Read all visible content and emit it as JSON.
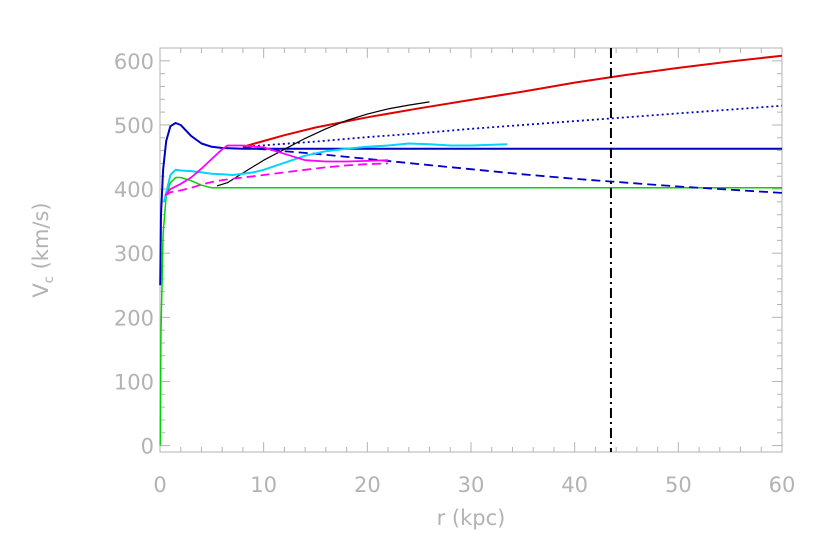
{
  "chart_data": {
    "type": "line",
    "title": "",
    "xlabel": "r (kpc)",
    "ylabel_main": "V",
    "ylabel_sub": "c",
    "ylabel_unit": " (km/s)",
    "xlim": [
      0,
      60
    ],
    "ylim": [
      -10,
      620
    ],
    "x_ticks": [
      0,
      10,
      20,
      30,
      40,
      50,
      60
    ],
    "x_tick_labels": [
      "0",
      "10",
      "20",
      "30",
      "40",
      "50",
      "60"
    ],
    "y_ticks": [
      0,
      100,
      200,
      300,
      400,
      500,
      600
    ],
    "y_tick_labels": [
      "0",
      "100",
      "200",
      "300",
      "400",
      "500",
      "600"
    ],
    "grid": false,
    "legend": "none",
    "vertical_lines": [
      {
        "x": 43.5,
        "color": "#000000",
        "dash": "dash-dot"
      }
    ],
    "series": [
      {
        "color": "#00d400",
        "dash": "solid",
        "width": 1.5,
        "x": [
          0.02,
          0.1,
          0.3,
          0.6,
          1.0,
          1.5,
          2.0,
          3.0,
          4.0,
          5.0,
          6.0,
          10,
          20,
          30,
          40,
          50,
          60
        ],
        "y": [
          0,
          180,
          330,
          390,
          410,
          418,
          418,
          413,
          406,
          402,
          402,
          402,
          402,
          402,
          402,
          402,
          402
        ]
      },
      {
        "color": "#0000c8",
        "dash": "solid",
        "width": 2,
        "x": [
          0.02,
          0.1,
          0.3,
          0.6,
          1.0,
          1.5,
          2.0,
          3.0,
          4.0,
          5.0,
          6.0,
          8.0,
          10,
          20,
          30,
          40,
          50,
          60
        ],
        "y": [
          250,
          360,
          430,
          475,
          498,
          503,
          500,
          483,
          471,
          466,
          464,
          463,
          463,
          463,
          463,
          463,
          463,
          463
        ]
      },
      {
        "color": "#0000c8",
        "dash": "dashed",
        "width": 1.8,
        "x": [
          8,
          12,
          15,
          20,
          25,
          30,
          35,
          40,
          45,
          50,
          55,
          60
        ],
        "y": [
          465,
          459,
          455,
          447,
          439,
          431,
          423,
          416,
          410,
          404,
          399,
          394
        ]
      },
      {
        "color": "#0000c8",
        "dash": "dotted",
        "width": 1.8,
        "x": [
          8,
          15,
          20,
          25,
          30,
          35,
          40,
          45,
          50,
          55,
          60
        ],
        "y": [
          466,
          474,
          481,
          487,
          494,
          500,
          506,
          512,
          518,
          524,
          530
        ]
      },
      {
        "color": "#e00000",
        "dash": "solid",
        "width": 2,
        "x": [
          8,
          10,
          12,
          15,
          20,
          25,
          30,
          35,
          40,
          45,
          50,
          55,
          60
        ],
        "y": [
          466,
          475,
          484,
          496,
          512,
          526,
          539,
          552,
          566,
          578,
          589,
          599,
          608
        ]
      },
      {
        "color": "#000000",
        "dash": "solid",
        "width": 1.2,
        "x": [
          5.5,
          6.5,
          7.5,
          8.5,
          10,
          12,
          14,
          16,
          18,
          20,
          22,
          24,
          26
        ],
        "y": [
          405,
          410,
          420,
          430,
          445,
          462,
          479,
          494,
          507,
          517,
          525,
          531,
          536
        ]
      },
      {
        "color": "#00d4ff",
        "dash": "solid",
        "width": 2,
        "x": [
          0.4,
          1.0,
          1.5,
          2.0,
          3.0,
          4.0,
          5.0,
          6.0,
          7.0,
          8.0,
          9.0,
          10,
          12,
          14,
          16,
          18,
          20,
          22,
          24,
          26,
          28,
          30,
          33.5
        ],
        "y": [
          380,
          422,
          430,
          429,
          428,
          426,
          424,
          423,
          422,
          424,
          426,
          430,
          441,
          452,
          459,
          463,
          466,
          468,
          471,
          470,
          468,
          468,
          470
        ]
      },
      {
        "color": "#ff00ff",
        "dash": "solid",
        "width": 1.8,
        "x": [
          0.5,
          1.0,
          2.0,
          3.0,
          4.0,
          5.0,
          6.0,
          6.5,
          8,
          10,
          12,
          14,
          16,
          18,
          20,
          22
        ],
        "y": [
          390,
          400,
          408,
          418,
          432,
          447,
          462,
          468,
          468,
          465,
          455,
          445,
          443,
          443,
          444,
          445
        ]
      },
      {
        "color": "#ff00ff",
        "dash": "dashed",
        "width": 1.8,
        "x": [
          0.5,
          1.0,
          2.0,
          3.0,
          4.0,
          5.0,
          6.0,
          7.0,
          8.0,
          9.0,
          10,
          12,
          14,
          16,
          18,
          20,
          22
        ],
        "y": [
          390,
          395,
          398,
          402,
          407,
          411,
          414,
          416,
          418,
          420,
          422,
          426,
          430,
          434,
          437,
          439,
          440
        ]
      }
    ]
  }
}
